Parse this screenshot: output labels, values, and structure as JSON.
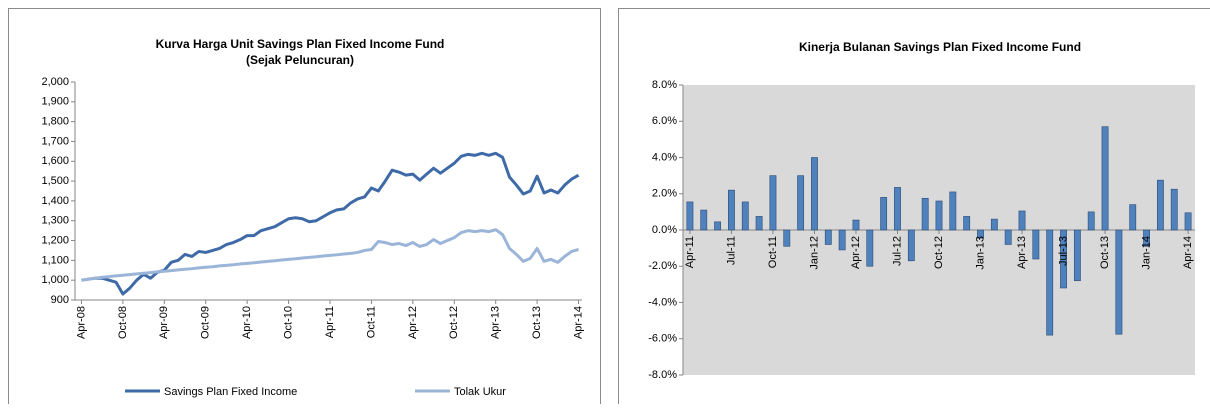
{
  "chart_data": [
    {
      "type": "line",
      "title": "Kurva Harga Unit Savings Plan Fixed Income Fund",
      "subtitle": "(Sejak Peluncuran)",
      "categories": [
        "Apr-08",
        null,
        null,
        null,
        null,
        null,
        "Oct-08",
        null,
        null,
        null,
        null,
        null,
        "Apr-09",
        null,
        null,
        null,
        null,
        null,
        "Oct-09",
        null,
        null,
        null,
        null,
        null,
        "Apr-10",
        null,
        null,
        null,
        null,
        null,
        "Oct-10",
        null,
        null,
        null,
        null,
        null,
        "Apr-11",
        null,
        null,
        null,
        null,
        null,
        "Oct-11",
        null,
        null,
        null,
        null,
        null,
        "Apr-12",
        null,
        null,
        null,
        null,
        null,
        "Oct-12",
        null,
        null,
        null,
        null,
        null,
        "Apr-13",
        null,
        null,
        null,
        null,
        null,
        "Oct-13",
        null,
        null,
        null,
        null,
        null,
        "Apr-14"
      ],
      "series": [
        {
          "name": "Savings Plan Fixed Income",
          "color": "#3e6aa8",
          "values": [
            1000,
            1005,
            1010,
            1010,
            1000,
            990,
            930,
            960,
            1000,
            1030,
            1010,
            1040,
            1050,
            1090,
            1100,
            1130,
            1120,
            1145,
            1140,
            1150,
            1160,
            1180,
            1190,
            1205,
            1225,
            1225,
            1250,
            1260,
            1270,
            1290,
            1310,
            1315,
            1310,
            1295,
            1300,
            1320,
            1340,
            1355,
            1360,
            1390,
            1410,
            1420,
            1465,
            1450,
            1500,
            1555,
            1545,
            1530,
            1535,
            1505,
            1535,
            1565,
            1540,
            1565,
            1590,
            1625,
            1635,
            1630,
            1640,
            1630,
            1640,
            1620,
            1520,
            1480,
            1435,
            1450,
            1525,
            1440,
            1455,
            1440,
            1480,
            1510,
            1530
          ]
        },
        {
          "name": "Tolak Ukur",
          "color": "#9bb5d9",
          "values": [
            1000,
            1005,
            1010,
            1015,
            1018,
            1022,
            1025,
            1028,
            1032,
            1035,
            1038,
            1042,
            1045,
            1048,
            1052,
            1055,
            1058,
            1062,
            1065,
            1068,
            1072,
            1075,
            1078,
            1082,
            1085,
            1088,
            1092,
            1095,
            1098,
            1102,
            1105,
            1108,
            1112,
            1115,
            1118,
            1122,
            1125,
            1128,
            1132,
            1135,
            1140,
            1150,
            1155,
            1195,
            1190,
            1180,
            1185,
            1175,
            1190,
            1170,
            1180,
            1205,
            1185,
            1200,
            1215,
            1240,
            1250,
            1245,
            1250,
            1245,
            1255,
            1230,
            1160,
            1130,
            1095,
            1110,
            1160,
            1095,
            1105,
            1090,
            1120,
            1145,
            1155
          ]
        }
      ],
      "ylim": [
        900,
        2000
      ],
      "yticks": [
        900,
        {
          "value": 1000,
          "label": "1,000"
        },
        {
          "value": 1100,
          "label": "1,100"
        },
        {
          "value": 1200,
          "label": "1,200"
        },
        {
          "value": 1300,
          "label": "1,300"
        },
        {
          "value": 1400,
          "label": "1,400"
        },
        {
          "value": 1500,
          "label": "1,500"
        },
        {
          "value": 1600,
          "label": "1,600"
        },
        {
          "value": 1700,
          "label": "1,700"
        },
        {
          "value": 1800,
          "label": "1,800"
        },
        {
          "value": 1900,
          "label": "1,900"
        },
        {
          "value": 2000,
          "label": "2,000"
        }
      ],
      "grid": false,
      "legend": "bottom"
    },
    {
      "type": "bar",
      "title": "Kinerja Bulanan Savings Plan Fixed Income Fund",
      "categories": [
        "Apr-11",
        null,
        null,
        "Jul-11",
        null,
        null,
        "Oct-11",
        null,
        null,
        "Jan-12",
        null,
        null,
        "Apr-12",
        null,
        null,
        "Jul-12",
        null,
        null,
        "Oct-12",
        null,
        null,
        "Jan-13",
        null,
        null,
        "Apr-13",
        null,
        null,
        "Jul-13",
        null,
        null,
        "Oct-13",
        null,
        null,
        "Jan-14",
        null,
        null,
        "Apr-14"
      ],
      "values": [
        1.55,
        1.1,
        0.45,
        2.2,
        1.55,
        0.75,
        3.0,
        -0.9,
        3.0,
        4.0,
        -0.8,
        -1.1,
        0.55,
        -2.0,
        1.8,
        2.35,
        -1.7,
        1.75,
        1.6,
        2.1,
        0.75,
        -0.45,
        0.6,
        -0.8,
        1.05,
        -1.6,
        -5.8,
        -3.2,
        -2.8,
        1.0,
        5.7,
        -5.75,
        1.4,
        -0.9,
        2.75,
        2.25,
        0.95
      ],
      "color": "#4f81bd",
      "ylim": [
        -8,
        8
      ],
      "yticks": [
        {
          "value": -8,
          "label": "-8.0%"
        },
        {
          "value": -6,
          "label": "-6.0%"
        },
        {
          "value": -4,
          "label": "-4.0%"
        },
        {
          "value": -2,
          "label": "-2.0%"
        },
        {
          "value": 0,
          "label": "0.0%"
        },
        {
          "value": 2,
          "label": "2.0%"
        },
        {
          "value": 4,
          "label": "4.0%"
        },
        {
          "value": 6,
          "label": "6.0%"
        },
        {
          "value": 8,
          "label": "8.0%"
        }
      ],
      "grid": false
    }
  ]
}
